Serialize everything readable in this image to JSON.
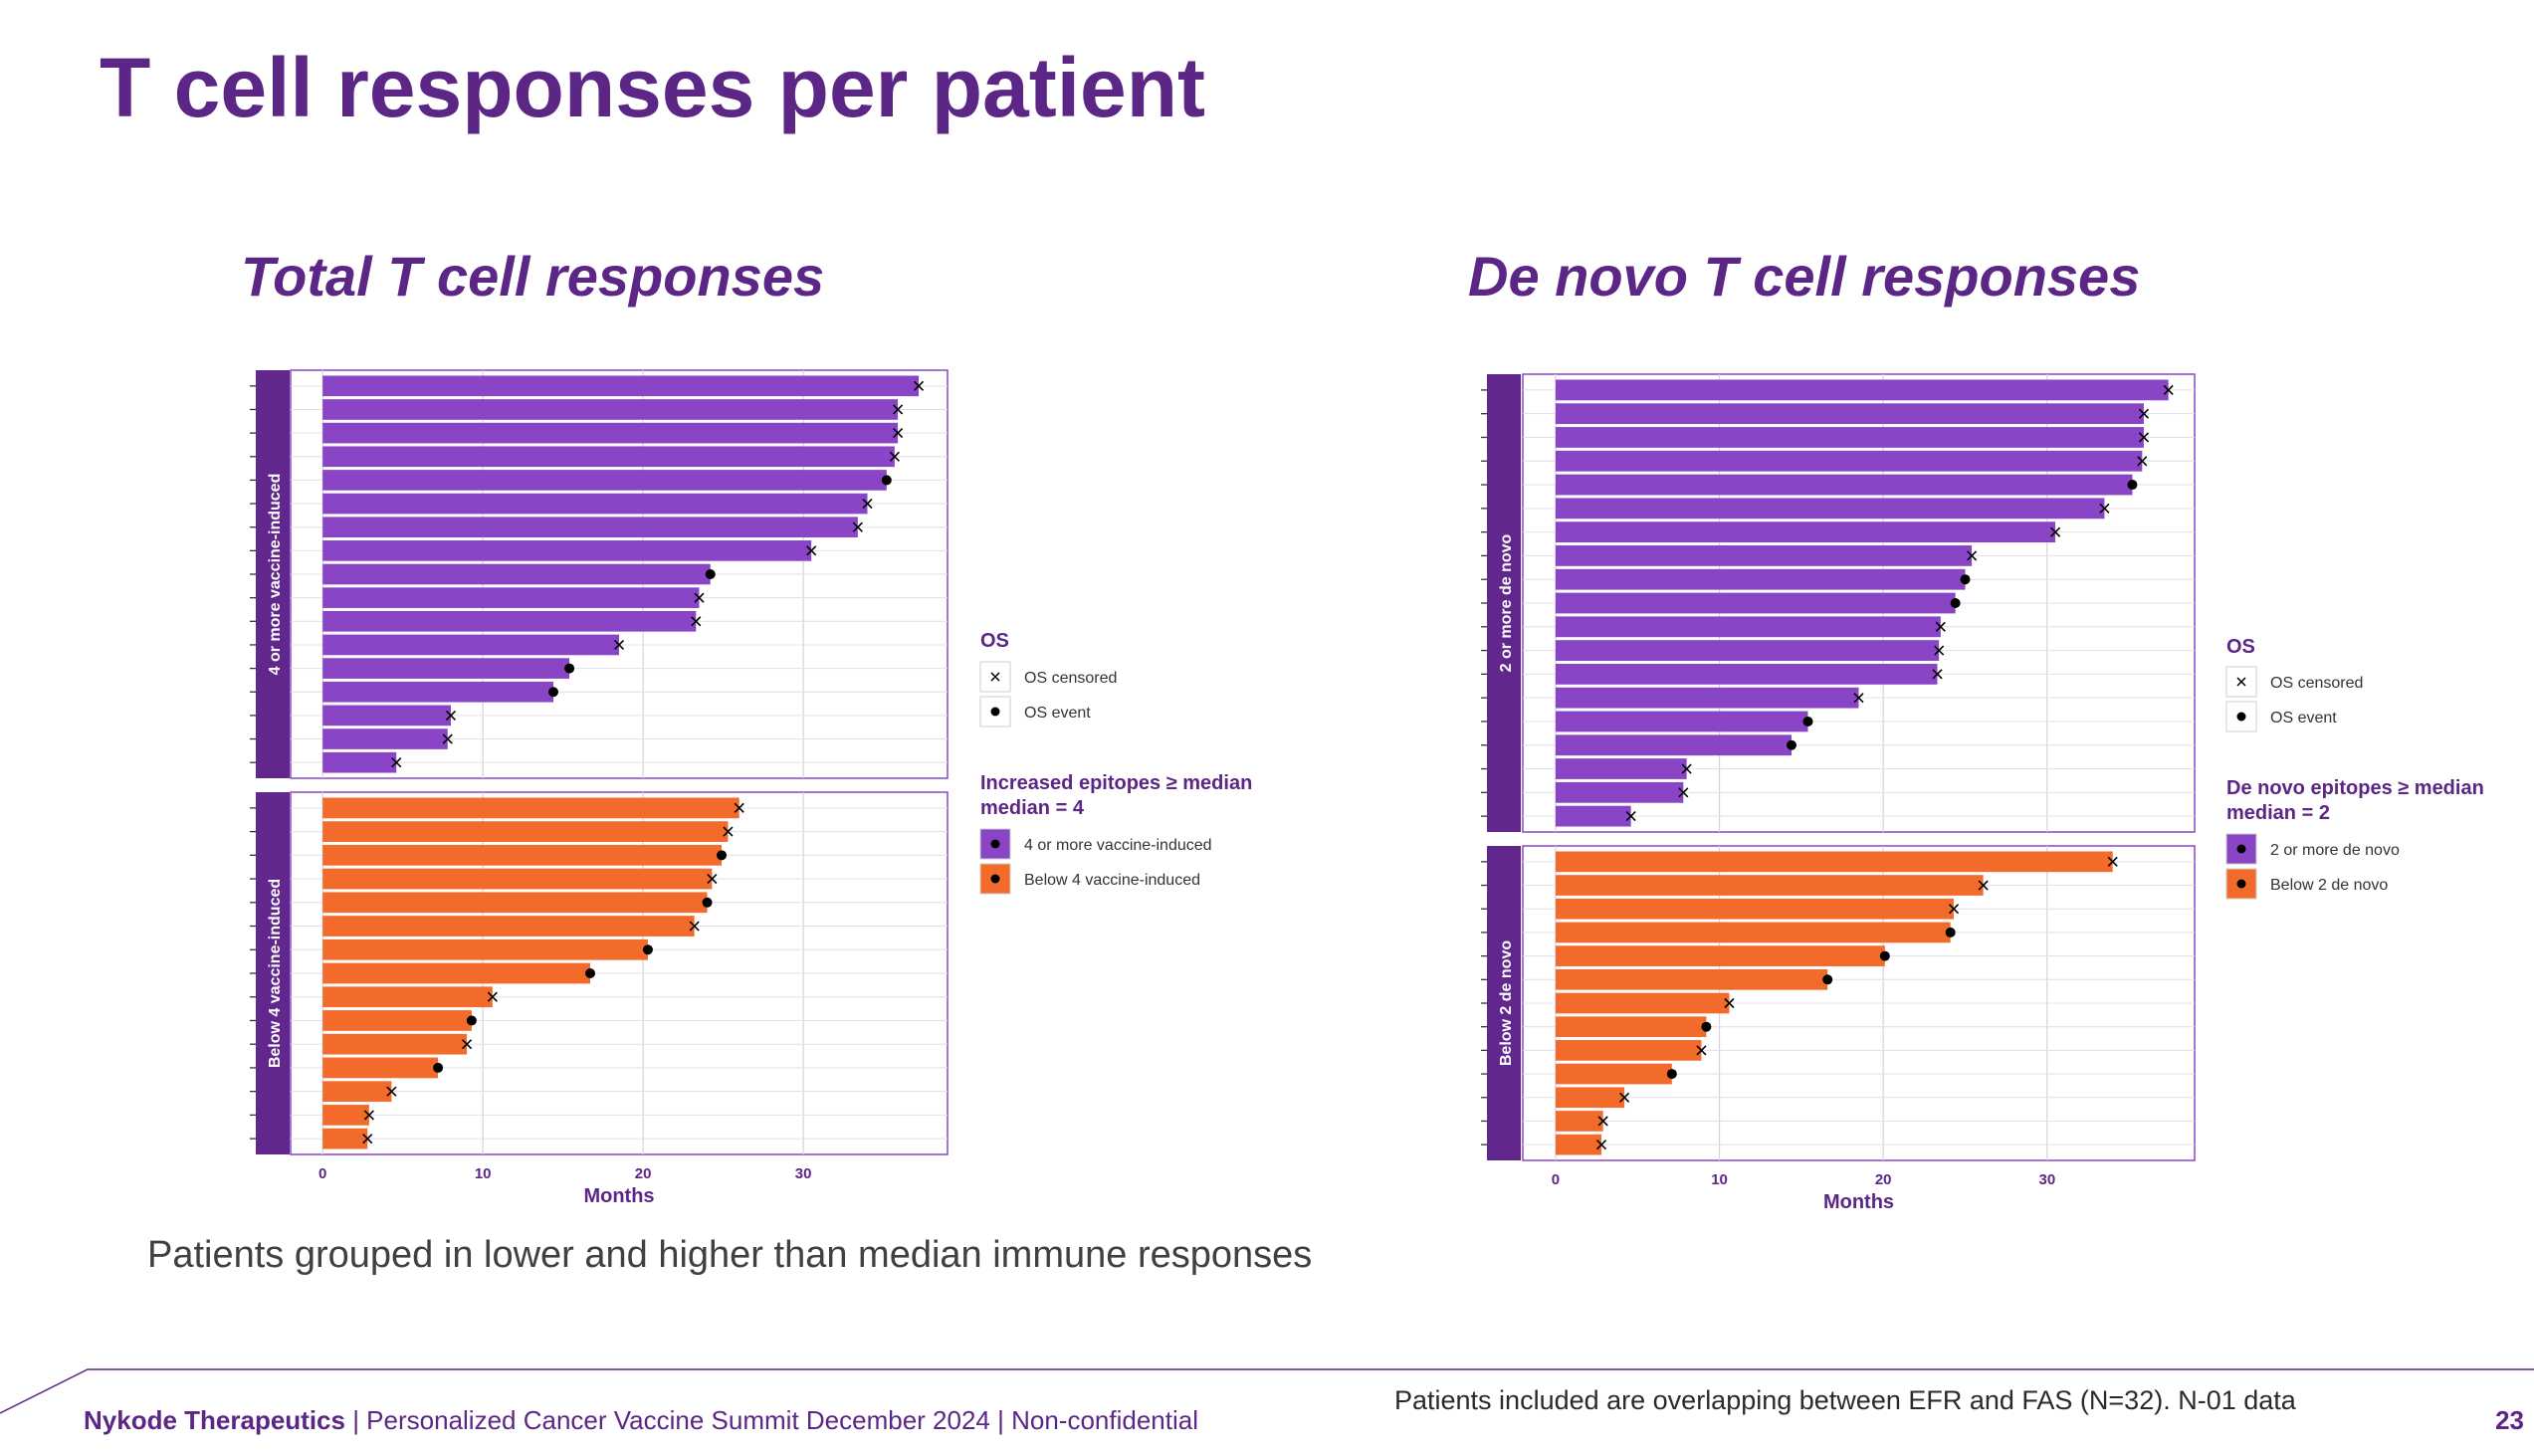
{
  "slide": {
    "title": "T cell responses per patient",
    "caption": "Patients grouped in lower and higher than median immune responses",
    "footer_company": "Nykode Therapeutics",
    "footer_text": " | Personalized Cancer Vaccine Summit December 2024 | Non-confidential",
    "footer_note": "Patients included are overlapping between EFR and FAS (N=32). N-01 data",
    "page_number": "23"
  },
  "colors": {
    "brand_purple": "#5b2686",
    "bar_purple": "#8a45c6",
    "bar_orange": "#f26b2a",
    "strip_purple": "#62278c"
  },
  "chart_data": [
    {
      "type": "bar",
      "orientation": "horizontal",
      "title": "Total T cell responses",
      "xlabel": "Months",
      "xlim": [
        -2,
        39
      ],
      "xticks": [
        0,
        10,
        20,
        30
      ],
      "grid": true,
      "legend_position": "right",
      "legend": {
        "os_title": "OS",
        "os_items": [
          "OS censored",
          "OS event"
        ],
        "group_title": "Increased epitopes ≥ median",
        "group_subtitle": "median = 4",
        "group_items": [
          "4 or more vaccine-induced",
          "Below 4 vaccine-induced"
        ]
      },
      "facets": [
        {
          "name": "4 or more vaccine-induced",
          "color": "#8a45c6",
          "values": [
            37.2,
            35.9,
            35.9,
            35.7,
            35.2,
            34.0,
            33.4,
            30.5,
            24.2,
            23.5,
            23.3,
            18.5,
            15.4,
            14.4,
            8.0,
            7.8,
            4.6
          ],
          "status": [
            "censored",
            "censored",
            "censored",
            "censored",
            "event",
            "censored",
            "censored",
            "censored",
            "event",
            "censored",
            "censored",
            "censored",
            "event",
            "event",
            "censored",
            "censored",
            "censored"
          ]
        },
        {
          "name": "Below 4 vaccine-induced",
          "color": "#f26b2a",
          "values": [
            26.0,
            25.3,
            24.9,
            24.3,
            24.0,
            23.2,
            20.3,
            16.7,
            10.6,
            9.3,
            9.0,
            7.2,
            4.3,
            2.9,
            2.8
          ],
          "status": [
            "censored",
            "censored",
            "event",
            "censored",
            "event",
            "censored",
            "event",
            "event",
            "censored",
            "event",
            "censored",
            "event",
            "censored",
            "censored",
            "censored"
          ]
        }
      ]
    },
    {
      "type": "bar",
      "orientation": "horizontal",
      "title": "De novo T cell responses",
      "xlabel": "Months",
      "xlim": [
        -2,
        39
      ],
      "xticks": [
        0,
        10,
        20,
        30
      ],
      "grid": true,
      "legend_position": "right",
      "legend": {
        "os_title": "OS",
        "os_items": [
          "OS censored",
          "OS event"
        ],
        "group_title": "De novo epitopes ≥ median",
        "group_subtitle": "median = 2",
        "group_items": [
          "2 or more de novo",
          "Below 2 de novo"
        ]
      },
      "facets": [
        {
          "name": "2 or more de novo",
          "color": "#8a45c6",
          "values": [
            37.4,
            35.9,
            35.9,
            35.8,
            35.2,
            33.5,
            30.5,
            25.4,
            25.0,
            24.4,
            23.5,
            23.4,
            23.3,
            18.5,
            15.4,
            14.4,
            8.0,
            7.8,
            4.6
          ],
          "status": [
            "censored",
            "censored",
            "censored",
            "censored",
            "event",
            "censored",
            "censored",
            "censored",
            "event",
            "event",
            "censored",
            "censored",
            "censored",
            "censored",
            "event",
            "event",
            "censored",
            "censored",
            "censored"
          ]
        },
        {
          "name": "Below 2 de novo",
          "color": "#f26b2a",
          "values": [
            34.0,
            26.1,
            24.3,
            24.1,
            20.1,
            16.6,
            10.6,
            9.2,
            8.9,
            7.1,
            4.2,
            2.9,
            2.8
          ],
          "status": [
            "censored",
            "censored",
            "censored",
            "event",
            "event",
            "event",
            "censored",
            "event",
            "censored",
            "event",
            "censored",
            "censored",
            "censored"
          ]
        }
      ]
    }
  ]
}
